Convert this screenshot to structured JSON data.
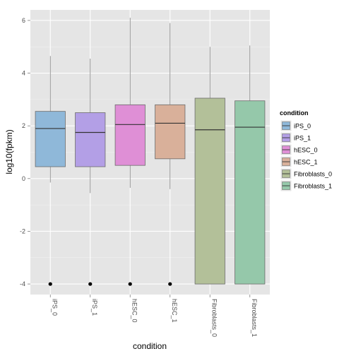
{
  "chart_data": {
    "type": "boxplot",
    "xlabel": "condition",
    "ylabel": "log10(fpkm)",
    "ylim": [
      -4.4,
      6.4
    ],
    "y_ticks": [
      -4,
      -2,
      0,
      2,
      4,
      6
    ],
    "grid": true,
    "legend_placement": "right",
    "legend": {
      "title": "condition",
      "entries": [
        "iPS_0",
        "iPS_1",
        "hESC_0",
        "hESC_1",
        "Fibroblasts_0",
        "Fibroblasts_1"
      ]
    },
    "categories": [
      "iPS_0",
      "iPS_1",
      "hESC_0",
      "hESC_1",
      "Fibroblasts_0",
      "Fibroblasts_1"
    ],
    "boxes": [
      {
        "name": "iPS_0",
        "whisker_low": -0.15,
        "q1": 0.45,
        "median": 1.9,
        "q3": 2.55,
        "whisker_high": 4.65,
        "outliers": [
          -4.0
        ],
        "color": "#8fb8d9"
      },
      {
        "name": "iPS_1",
        "whisker_low": -0.55,
        "q1": 0.45,
        "median": 1.75,
        "q3": 2.5,
        "whisker_high": 4.55,
        "outliers": [
          -4.0
        ],
        "color": "#b39fe6"
      },
      {
        "name": "hESC_0",
        "whisker_low": -0.35,
        "q1": 0.5,
        "median": 2.05,
        "q3": 2.8,
        "whisker_high": 6.1,
        "outliers": [
          -4.0
        ],
        "color": "#df8fd6"
      },
      {
        "name": "hESC_1",
        "whisker_low": -0.4,
        "q1": 0.75,
        "median": 2.1,
        "q3": 2.8,
        "whisker_high": 5.9,
        "outliers": [
          -4.0
        ],
        "color": "#d9b09a"
      },
      {
        "name": "Fibroblasts_0",
        "whisker_low": -4.0,
        "q1": -4.0,
        "median": 1.85,
        "q3": 3.05,
        "whisker_high": 5.0,
        "outliers": [],
        "color": "#b3c099"
      },
      {
        "name": "Fibroblasts_1",
        "whisker_low": -4.0,
        "q1": -4.0,
        "median": 1.95,
        "q3": 2.95,
        "whisker_high": 5.05,
        "outliers": [],
        "color": "#95c8aa"
      }
    ]
  }
}
